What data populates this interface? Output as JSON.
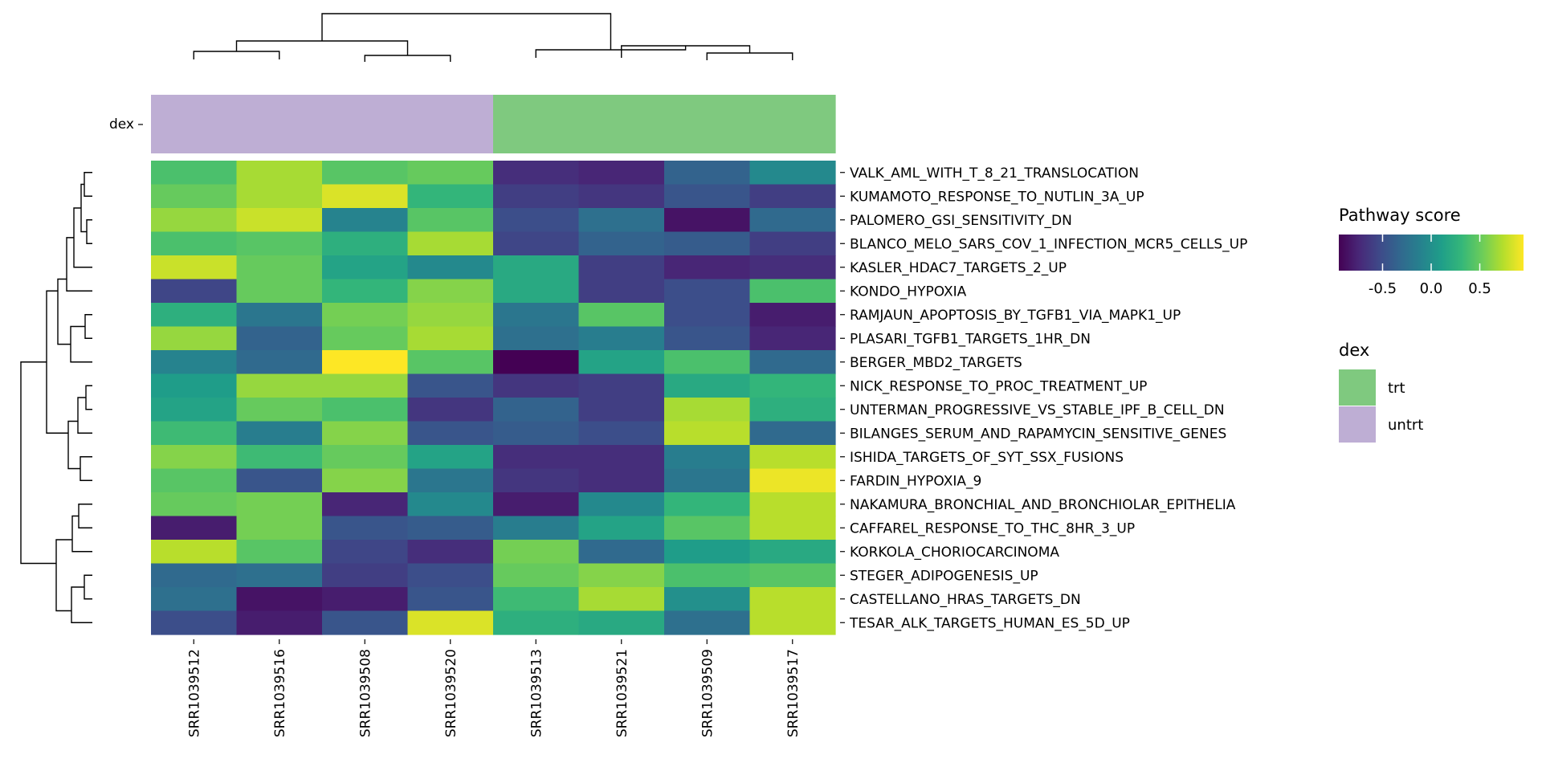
{
  "chart_data": {
    "type": "heatmap",
    "columns": [
      "SRR1039512",
      "SRR1039516",
      "SRR1039508",
      "SRR1039520",
      "SRR1039513",
      "SRR1039521",
      "SRR1039509",
      "SRR1039517"
    ],
    "rows": [
      "VALK_AML_WITH_T_8_21_TRANSLOCATION",
      "KUMAMOTO_RESPONSE_TO_NUTLIN_3A_UP",
      "PALOMERO_GSI_SENSITIVITY_DN",
      "BLANCO_MELO_SARS_COV_1_INFECTION_MCR5_CELLS_UP",
      "KASLER_HDAC7_TARGETS_2_UP",
      "KONDO_HYPOXIA",
      "RAMJAUN_APOPTOSIS_BY_TGFB1_VIA_MAPK1_UP",
      "PLASARI_TGFB1_TARGETS_1HR_DN",
      "BERGER_MBD2_TARGETS",
      "NICK_RESPONSE_TO_PROC_TREATMENT_UP",
      "UNTERMAN_PROGRESSIVE_VS_STABLE_IPF_B_CELL_DN",
      "BILANGES_SERUM_AND_RAPAMYCIN_SENSITIVE_GENES",
      "ISHIDA_TARGETS_OF_SYT_SSX_FUSIONS",
      "FARDIN_HYPOXIA_9",
      "NAKAMURA_BRONCHIAL_AND_BRONCHIOLAR_EPITHELIA",
      "CAFFAREL_RESPONSE_TO_THC_8HR_3_UP",
      "KORKOLA_CHORIOCARCINOMA",
      "STEGER_ADIPOGENESIS_UP",
      "CASTELLANO_HRAS_TARGETS_DN",
      "TESAR_ALK_TARGETS_HUMAN_ES_5D_UP"
    ],
    "values": [
      [
        0.4,
        0.7,
        0.45,
        0.5,
        -0.7,
        -0.75,
        -0.35,
        -0.05
      ],
      [
        0.5,
        0.7,
        0.85,
        0.3,
        -0.6,
        -0.65,
        -0.45,
        -0.6
      ],
      [
        0.65,
        0.8,
        -0.1,
        0.45,
        -0.5,
        -0.25,
        -0.85,
        -0.3
      ],
      [
        0.4,
        0.45,
        0.25,
        0.7,
        -0.55,
        -0.35,
        -0.4,
        -0.6
      ],
      [
        0.8,
        0.5,
        0.15,
        -0.05,
        0.2,
        -0.6,
        -0.75,
        -0.7
      ],
      [
        -0.55,
        0.5,
        0.3,
        0.6,
        0.2,
        -0.6,
        -0.5,
        0.4
      ],
      [
        0.25,
        -0.2,
        0.55,
        0.65,
        -0.2,
        0.45,
        -0.5,
        -0.8
      ],
      [
        0.65,
        -0.35,
        0.5,
        0.7,
        -0.25,
        -0.15,
        -0.45,
        -0.75
      ],
      [
        -0.1,
        -0.3,
        0.95,
        0.45,
        -1.0,
        0.15,
        0.4,
        -0.3
      ],
      [
        0.1,
        0.65,
        0.65,
        -0.45,
        -0.65,
        -0.6,
        0.2,
        0.3
      ],
      [
        0.15,
        0.5,
        0.4,
        -0.65,
        -0.35,
        -0.6,
        0.7,
        0.25
      ],
      [
        0.35,
        -0.15,
        0.6,
        -0.45,
        -0.4,
        -0.5,
        0.75,
        -0.3
      ],
      [
        0.6,
        0.35,
        0.5,
        0.15,
        -0.7,
        -0.7,
        -0.15,
        0.75
      ],
      [
        0.45,
        -0.45,
        0.6,
        -0.2,
        -0.65,
        -0.7,
        -0.2,
        0.9
      ],
      [
        0.5,
        0.55,
        -0.75,
        -0.05,
        -0.8,
        -0.05,
        0.3,
        0.75
      ],
      [
        -0.8,
        0.55,
        -0.45,
        -0.4,
        -0.15,
        0.15,
        0.45,
        0.75
      ],
      [
        0.75,
        0.45,
        -0.55,
        -0.7,
        0.55,
        -0.3,
        0.1,
        0.2
      ],
      [
        -0.3,
        -0.25,
        -0.6,
        -0.5,
        0.5,
        0.6,
        0.4,
        0.45
      ],
      [
        -0.25,
        -0.85,
        -0.8,
        -0.45,
        0.35,
        0.7,
        0.0,
        0.75
      ],
      [
        -0.5,
        -0.8,
        -0.45,
        0.85,
        0.25,
        0.2,
        -0.25,
        0.75
      ]
    ],
    "annotation": {
      "label": "dex",
      "groups": [
        "untrt",
        "untrt",
        "untrt",
        "untrt",
        "trt",
        "trt",
        "trt",
        "trt"
      ]
    },
    "color_scale": {
      "title": "Pathway score",
      "palette": "viridis",
      "min": -0.95,
      "max": 0.95,
      "tick_values": [
        -0.5,
        0.0,
        0.5
      ],
      "tick_labels": [
        "-0.5",
        "0.0",
        "0.5"
      ]
    },
    "legend": {
      "annotation_title": "dex",
      "items": [
        {
          "label": "trt",
          "color": "#7FC97F"
        },
        {
          "label": "untrt",
          "color": "#BEAED4"
        }
      ],
      "placement": "right"
    },
    "dendrograms": {
      "rows": true,
      "columns": true
    }
  }
}
